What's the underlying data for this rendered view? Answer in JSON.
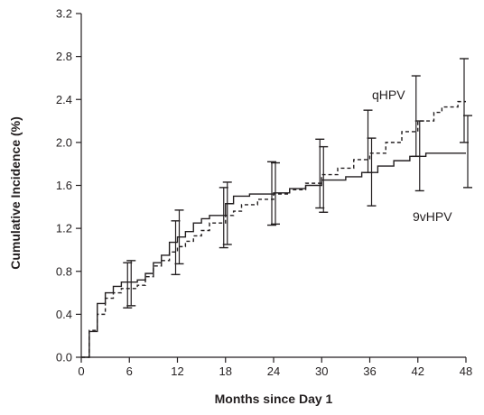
{
  "chart_data": {
    "type": "line",
    "subtype": "step",
    "title": "",
    "xlabel": "Months since Day 1",
    "ylabel": "Cumulative Incidence (%)",
    "xlim": [
      0,
      48
    ],
    "ylim": [
      0,
      3.2
    ],
    "x_ticks": [
      0,
      6,
      12,
      18,
      24,
      30,
      36,
      42,
      48
    ],
    "y_ticks": [
      "0.0",
      "0.4",
      "0.8",
      "1.2",
      "1.6",
      "2.0",
      "2.4",
      "2.8",
      "3.2"
    ],
    "grid": false,
    "legend": "none (series labeled directly on plot)",
    "series": [
      {
        "name": "9vHPV",
        "line_style": "solid",
        "label_position": "below-right",
        "color": "#231f20",
        "steps": [
          [
            0,
            0
          ],
          [
            1,
            0.24
          ],
          [
            2,
            0.5
          ],
          [
            3,
            0.6
          ],
          [
            4,
            0.66
          ],
          [
            5,
            0.7
          ],
          [
            7,
            0.72
          ],
          [
            8,
            0.78
          ],
          [
            9,
            0.88
          ],
          [
            10,
            0.95
          ],
          [
            11,
            1.07
          ],
          [
            12,
            1.12
          ],
          [
            13,
            1.17
          ],
          [
            14,
            1.25
          ],
          [
            15,
            1.29
          ],
          [
            16,
            1.32
          ],
          [
            18,
            1.43
          ],
          [
            19,
            1.5
          ],
          [
            21,
            1.52
          ],
          [
            24,
            1.53
          ],
          [
            26,
            1.57
          ],
          [
            28,
            1.6
          ],
          [
            30,
            1.65
          ],
          [
            33,
            1.68
          ],
          [
            35,
            1.72
          ],
          [
            37,
            1.78
          ],
          [
            39,
            1.83
          ],
          [
            41,
            1.87
          ],
          [
            43,
            1.9
          ],
          [
            48,
            1.9
          ]
        ],
        "error_bars": [
          {
            "x": 6,
            "y": 0.7,
            "low": 0.48,
            "high": 0.9
          },
          {
            "x": 12,
            "y": 1.12,
            "low": 0.87,
            "high": 1.37
          },
          {
            "x": 18,
            "y": 1.33,
            "low": 1.05,
            "high": 1.63
          },
          {
            "x": 24,
            "y": 1.52,
            "low": 1.24,
            "high": 1.81
          },
          {
            "x": 30,
            "y": 1.65,
            "low": 1.35,
            "high": 1.96
          },
          {
            "x": 36,
            "y": 1.72,
            "low": 1.41,
            "high": 2.04
          },
          {
            "x": 42,
            "y": 1.87,
            "low": 1.55,
            "high": 2.2
          },
          {
            "x": 48,
            "y": 1.9,
            "low": 1.58,
            "high": 2.25
          }
        ]
      },
      {
        "name": "qHPV",
        "line_style": "dashed",
        "label_position": "above-right",
        "color": "#231f20",
        "steps": [
          [
            0,
            0
          ],
          [
            1,
            0.25
          ],
          [
            2,
            0.4
          ],
          [
            3,
            0.55
          ],
          [
            4,
            0.6
          ],
          [
            5,
            0.64
          ],
          [
            7,
            0.67
          ],
          [
            8,
            0.75
          ],
          [
            9,
            0.85
          ],
          [
            10,
            0.9
          ],
          [
            11,
            0.98
          ],
          [
            12,
            1.03
          ],
          [
            13,
            1.08
          ],
          [
            14,
            1.13
          ],
          [
            15,
            1.18
          ],
          [
            16,
            1.25
          ],
          [
            18,
            1.32
          ],
          [
            19,
            1.36
          ],
          [
            20,
            1.42
          ],
          [
            22,
            1.47
          ],
          [
            24,
            1.52
          ],
          [
            26,
            1.56
          ],
          [
            28,
            1.62
          ],
          [
            30,
            1.7
          ],
          [
            32,
            1.76
          ],
          [
            34,
            1.84
          ],
          [
            36,
            1.9
          ],
          [
            38,
            2.0
          ],
          [
            40,
            2.1
          ],
          [
            42,
            2.2
          ],
          [
            44,
            2.28
          ],
          [
            45,
            2.33
          ],
          [
            47,
            2.38
          ],
          [
            48,
            2.38
          ]
        ],
        "error_bars": [
          {
            "x": 6,
            "y": 0.67,
            "low": 0.46,
            "high": 0.88
          },
          {
            "x": 12,
            "y": 1.03,
            "low": 0.77,
            "high": 1.27
          },
          {
            "x": 18,
            "y": 1.32,
            "low": 1.02,
            "high": 1.58
          },
          {
            "x": 24,
            "y": 1.52,
            "low": 1.23,
            "high": 1.82
          },
          {
            "x": 30,
            "y": 1.7,
            "low": 1.39,
            "high": 2.03
          },
          {
            "x": 36,
            "y": 1.9,
            "low": 1.72,
            "high": 2.3
          },
          {
            "x": 42,
            "y": 2.2,
            "low": 1.87,
            "high": 2.62
          },
          {
            "x": 48,
            "y": 2.38,
            "low": 2.0,
            "high": 2.78
          }
        ]
      }
    ]
  }
}
